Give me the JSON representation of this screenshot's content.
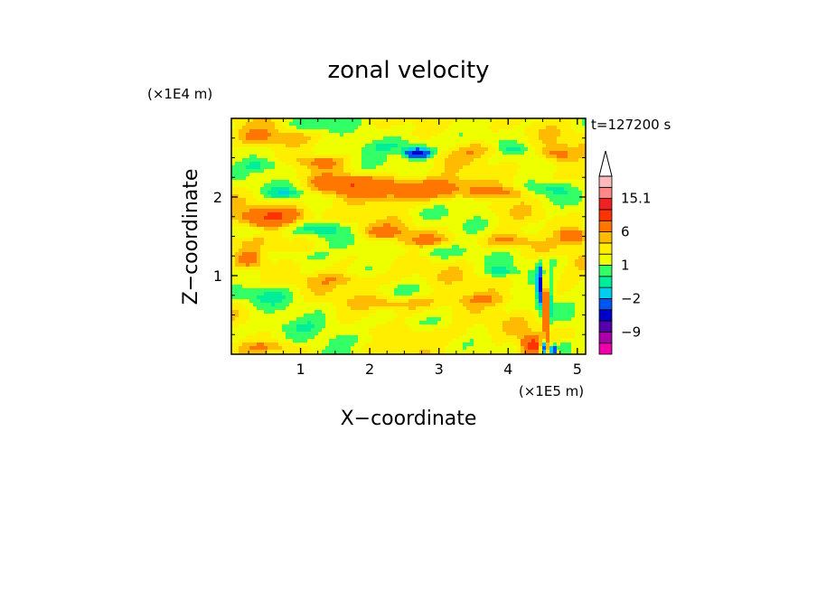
{
  "chart_data": {
    "type": "heatmap",
    "title": "zonal velocity",
    "xlabel": "X−coordinate",
    "ylabel": "Z−coordinate",
    "x_unit": "(×1E5 m)",
    "y_unit": "(×1E4 m)",
    "time_label": "t=127200 s",
    "xlim": [
      0,
      5.12
    ],
    "ylim": [
      0,
      3.0
    ],
    "x_ticks": [
      1,
      2,
      3,
      4,
      5
    ],
    "y_ticks": [
      1,
      2
    ],
    "colorbar": {
      "levels": [
        -15,
        -12,
        -9,
        -6,
        -3,
        -2,
        -1,
        0,
        1,
        2,
        3,
        6,
        9,
        12,
        15.1
      ],
      "tick_labels": [
        "15.1",
        "6",
        "1",
        "−2",
        "−9"
      ],
      "tick_values": [
        15.1,
        6,
        1,
        -2,
        -9
      ],
      "colors": [
        "#ee00aa",
        "#aa00aa",
        "#5500aa",
        "#0000cc",
        "#0055ee",
        "#00ccee",
        "#00ee99",
        "#33ff66",
        "#eeff00",
        "#ffee00",
        "#ffbb00",
        "#ff7700",
        "#ff3300",
        "#ee2222",
        "#ff8888",
        "#ffbbbb"
      ],
      "extend": "max"
    },
    "features": [
      {
        "x": 0.0,
        "z": 0.0,
        "sx": 0.0,
        "sz": 0.0,
        "v": 0.3
      },
      {
        "x": 0.4,
        "z": 2.75,
        "sx": 0.45,
        "sz": 0.12,
        "v": 2.2
      },
      {
        "x": 1.1,
        "z": 2.9,
        "sx": 0.35,
        "sz": 0.08,
        "v": -1.8
      },
      {
        "x": 2.7,
        "z": 2.55,
        "sx": 0.18,
        "sz": 0.06,
        "v": -9.5
      },
      {
        "x": 2.5,
        "z": 2.65,
        "sx": 0.6,
        "sz": 0.1,
        "v": -2.2
      },
      {
        "x": 3.6,
        "z": 2.6,
        "sx": 0.4,
        "sz": 0.1,
        "v": 2.0
      },
      {
        "x": 4.1,
        "z": 2.6,
        "sx": 0.2,
        "sz": 0.07,
        "v": -1.6
      },
      {
        "x": 4.7,
        "z": 2.55,
        "sx": 0.25,
        "sz": 0.1,
        "v": 3.2
      },
      {
        "x": 0.5,
        "z": 2.4,
        "sx": 0.35,
        "sz": 0.08,
        "v": -2.0
      },
      {
        "x": 1.3,
        "z": 2.45,
        "sx": 0.35,
        "sz": 0.08,
        "v": 2.5
      },
      {
        "x": 2.6,
        "z": 2.1,
        "sx": 1.0,
        "sz": 0.16,
        "v": 3.8
      },
      {
        "x": 1.6,
        "z": 2.15,
        "sx": 0.4,
        "sz": 0.1,
        "v": 3.2
      },
      {
        "x": 0.8,
        "z": 2.05,
        "sx": 0.3,
        "sz": 0.07,
        "v": -2.0
      },
      {
        "x": 3.5,
        "z": 1.95,
        "sx": 0.35,
        "sz": 0.08,
        "v": -2.0
      },
      {
        "x": 4.0,
        "z": 2.05,
        "sx": 0.25,
        "sz": 0.08,
        "v": 2.2
      },
      {
        "x": 4.6,
        "z": 2.1,
        "sx": 0.3,
        "sz": 0.08,
        "v": -1.6
      },
      {
        "x": 0.6,
        "z": 1.75,
        "sx": 0.45,
        "sz": 0.12,
        "v": 5.5
      },
      {
        "x": 1.3,
        "z": 1.6,
        "sx": 0.3,
        "sz": 0.08,
        "v": -2.2
      },
      {
        "x": 0.3,
        "z": 1.55,
        "sx": 0.2,
        "sz": 0.07,
        "v": -2.0
      },
      {
        "x": 2.2,
        "z": 1.55,
        "sx": 0.35,
        "sz": 0.08,
        "v": 2.2
      },
      {
        "x": 2.8,
        "z": 1.45,
        "sx": 0.35,
        "sz": 0.08,
        "v": 2.2
      },
      {
        "x": 4.0,
        "z": 1.45,
        "sx": 0.3,
        "sz": 0.08,
        "v": 2.5
      },
      {
        "x": 4.95,
        "z": 1.5,
        "sx": 0.2,
        "sz": 0.1,
        "v": 4.8
      },
      {
        "x": 1.0,
        "z": 1.25,
        "sx": 0.4,
        "sz": 0.08,
        "v": -1.8
      },
      {
        "x": 0.25,
        "z": 1.2,
        "sx": 0.22,
        "sz": 0.12,
        "v": 4.2
      },
      {
        "x": 3.0,
        "z": 1.3,
        "sx": 0.4,
        "sz": 0.08,
        "v": -1.4
      },
      {
        "x": 3.9,
        "z": 1.05,
        "sx": 0.2,
        "sz": 0.06,
        "v": -2.0
      },
      {
        "x": 4.7,
        "z": 1.2,
        "sx": 0.2,
        "sz": 0.08,
        "v": -1.2
      },
      {
        "x": 1.8,
        "z": 0.95,
        "sx": 0.7,
        "sz": 0.08,
        "v": 1.9
      },
      {
        "x": 0.5,
        "z": 0.75,
        "sx": 0.5,
        "sz": 0.1,
        "v": -1.4
      },
      {
        "x": 2.5,
        "z": 0.65,
        "sx": 0.6,
        "sz": 0.08,
        "v": 1.8
      },
      {
        "x": 3.6,
        "z": 0.7,
        "sx": 0.5,
        "sz": 0.08,
        "v": 1.8
      },
      {
        "x": 4.45,
        "z": 0.85,
        "sx": 0.03,
        "sz": 0.25,
        "v": -10.5
      },
      {
        "x": 4.55,
        "z": 0.55,
        "sx": 0.05,
        "sz": 0.3,
        "v": 5.5
      },
      {
        "x": 4.62,
        "z": 0.7,
        "sx": 0.04,
        "sz": 0.3,
        "v": -2.5
      },
      {
        "x": 4.35,
        "z": 0.12,
        "sx": 0.15,
        "sz": 0.12,
        "v": 6.5
      },
      {
        "x": 4.5,
        "z": 0.08,
        "sx": 0.03,
        "sz": 0.1,
        "v": -11.0
      },
      {
        "x": 4.65,
        "z": 0.06,
        "sx": 0.05,
        "sz": 0.06,
        "v": -7.0
      },
      {
        "x": 4.8,
        "z": 0.1,
        "sx": 0.1,
        "sz": 0.08,
        "v": -2.2
      },
      {
        "x": 1.0,
        "z": 0.35,
        "sx": 0.7,
        "sz": 0.1,
        "v": -1.4
      },
      {
        "x": 2.0,
        "z": 0.2,
        "sx": 0.8,
        "sz": 0.08,
        "v": -1.2
      },
      {
        "x": 3.0,
        "z": 0.25,
        "sx": 0.6,
        "sz": 0.1,
        "v": 1.8
      },
      {
        "x": 0.6,
        "z": 0.1,
        "sx": 0.5,
        "sz": 0.06,
        "v": 1.8
      }
    ]
  }
}
